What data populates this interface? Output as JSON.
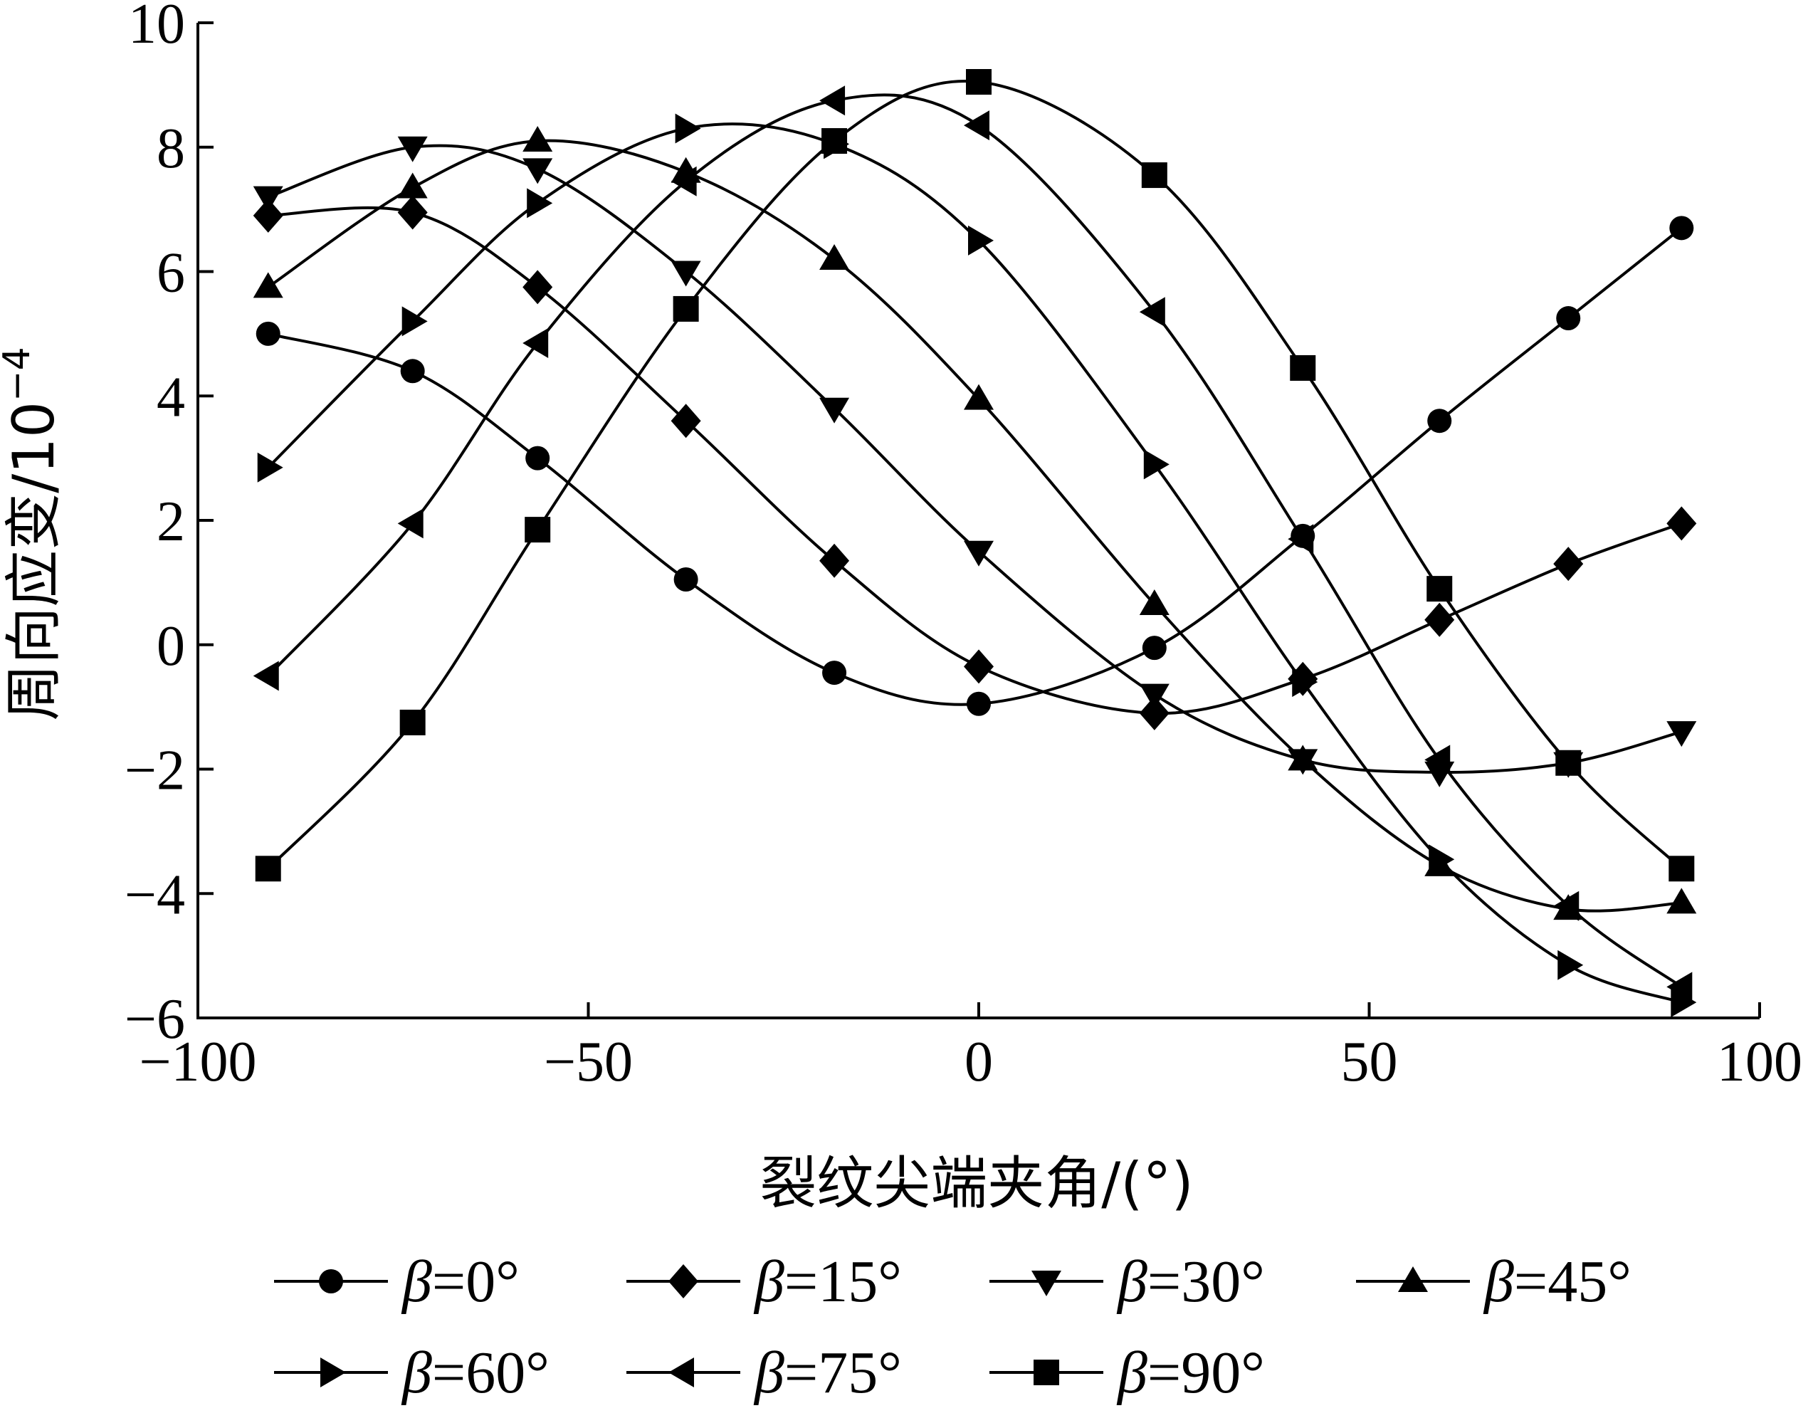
{
  "chart_data": {
    "type": "line",
    "xlabel": "裂纹尖端夹角/(°)",
    "ylabel": "周向应变/10",
    "ylabel_exponent": "−4",
    "xlim": [
      -100,
      100
    ],
    "ylim": [
      -6,
      10
    ],
    "xticks": [
      -100,
      -50,
      0,
      50,
      100
    ],
    "yticks": [
      -6,
      -4,
      -2,
      0,
      2,
      4,
      6,
      8,
      10
    ],
    "xtick_labels": [
      "−100",
      "−50",
      "0",
      "50",
      "100"
    ],
    "ytick_labels": [
      "−6",
      "−4",
      "−2",
      "0",
      "2",
      "4",
      "6",
      "8",
      "10"
    ],
    "grid": false,
    "legend_position": "bottom",
    "x": [
      -91,
      -72.5,
      -56.5,
      -37.5,
      -18.5,
      0,
      22.5,
      41.5,
      59,
      75.5,
      90
    ],
    "series": [
      {
        "name": "β=0°",
        "marker": "circle",
        "values": [
          5.0,
          4.4,
          3.0,
          1.05,
          -0.45,
          -0.95,
          -0.05,
          1.75,
          3.6,
          5.25,
          6.7
        ]
      },
      {
        "name": "β=15°",
        "marker": "diamond",
        "values": [
          6.9,
          6.95,
          5.75,
          3.6,
          1.35,
          -0.35,
          -1.1,
          -0.55,
          0.4,
          1.3,
          1.95
        ]
      },
      {
        "name": "β=30°",
        "marker": "triangle-down",
        "values": [
          7.2,
          8.0,
          7.65,
          6.0,
          3.8,
          1.5,
          -0.8,
          -1.85,
          -2.05,
          -1.9,
          -1.4
        ]
      },
      {
        "name": "β=45°",
        "marker": "triangle-up",
        "values": [
          5.75,
          7.35,
          8.1,
          7.6,
          6.2,
          3.95,
          0.65,
          -1.85,
          -3.55,
          -4.25,
          -4.15
        ]
      },
      {
        "name": "β=60°",
        "marker": "triangle-right",
        "values": [
          2.85,
          5.2,
          7.1,
          8.3,
          8.05,
          6.5,
          2.9,
          -0.6,
          -3.45,
          -5.15,
          -5.75
        ]
      },
      {
        "name": "β=75°",
        "marker": "triangle-left",
        "values": [
          -0.5,
          1.95,
          4.85,
          7.45,
          8.75,
          8.35,
          5.35,
          1.7,
          -1.85,
          -4.2,
          -5.5
        ]
      },
      {
        "name": "β=90°",
        "marker": "square",
        "values": [
          -3.6,
          -1.25,
          1.85,
          5.4,
          8.1,
          9.05,
          7.55,
          4.45,
          0.9,
          -1.9,
          -3.6
        ]
      }
    ]
  }
}
